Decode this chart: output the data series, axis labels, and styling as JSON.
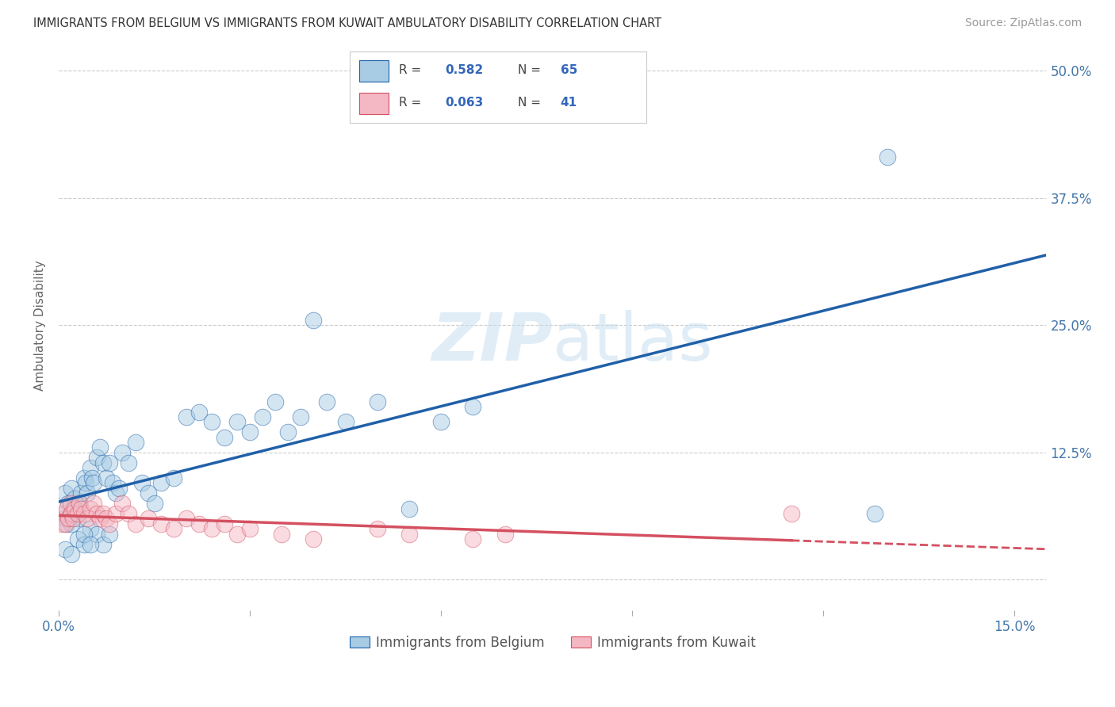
{
  "title": "IMMIGRANTS FROM BELGIUM VS IMMIGRANTS FROM KUWAIT AMBULATORY DISABILITY CORRELATION CHART",
  "source": "Source: ZipAtlas.com",
  "xlabel_belgium": "Immigrants from Belgium",
  "xlabel_kuwait": "Immigrants from Kuwait",
  "ylabel": "Ambulatory Disability",
  "xlim": [
    0.0,
    0.155
  ],
  "ylim": [
    -0.03,
    0.53
  ],
  "xticks": [
    0.0,
    0.03,
    0.06,
    0.09,
    0.12,
    0.15
  ],
  "yticks": [
    0.0,
    0.125,
    0.25,
    0.375,
    0.5
  ],
  "ytick_labels": [
    "",
    "12.5%",
    "25.0%",
    "37.5%",
    "50.0%"
  ],
  "legend_R_belgium": "0.582",
  "legend_N_belgium": "65",
  "legend_R_kuwait": "0.063",
  "legend_N_kuwait": "41",
  "color_belgium": "#a8cce4",
  "color_kuwait": "#f4b8c4",
  "color_trendline_belgium": "#2060a8",
  "color_trendline_kuwait": "#d45060",
  "background_color": "#ffffff",
  "belgium_x": [
    0.0008,
    0.001,
    0.0012,
    0.0015,
    0.0018,
    0.002,
    0.0022,
    0.0025,
    0.003,
    0.0032,
    0.0035,
    0.004,
    0.0042,
    0.0045,
    0.005,
    0.0052,
    0.0055,
    0.006,
    0.0065,
    0.007,
    0.0075,
    0.008,
    0.0085,
    0.009,
    0.0095,
    0.01,
    0.011,
    0.012,
    0.013,
    0.014,
    0.015,
    0.016,
    0.018,
    0.02,
    0.022,
    0.024,
    0.026,
    0.028,
    0.03,
    0.032,
    0.034,
    0.036,
    0.038,
    0.04,
    0.042,
    0.045,
    0.05,
    0.055,
    0.06,
    0.065,
    0.001,
    0.002,
    0.003,
    0.004,
    0.005,
    0.006,
    0.007,
    0.008,
    0.0015,
    0.002,
    0.003,
    0.004,
    0.005,
    0.13,
    0.128
  ],
  "belgium_y": [
    0.06,
    0.085,
    0.055,
    0.075,
    0.065,
    0.09,
    0.07,
    0.08,
    0.06,
    0.075,
    0.085,
    0.1,
    0.095,
    0.085,
    0.11,
    0.1,
    0.095,
    0.12,
    0.13,
    0.115,
    0.1,
    0.115,
    0.095,
    0.085,
    0.09,
    0.125,
    0.115,
    0.135,
    0.095,
    0.085,
    0.075,
    0.095,
    0.1,
    0.16,
    0.165,
    0.155,
    0.14,
    0.155,
    0.145,
    0.16,
    0.175,
    0.145,
    0.16,
    0.255,
    0.175,
    0.155,
    0.175,
    0.07,
    0.155,
    0.17,
    0.03,
    0.025,
    0.04,
    0.035,
    0.05,
    0.045,
    0.035,
    0.045,
    0.06,
    0.055,
    0.065,
    0.045,
    0.035,
    0.415,
    0.065
  ],
  "kuwait_x": [
    0.0005,
    0.0008,
    0.001,
    0.0012,
    0.0015,
    0.0018,
    0.002,
    0.0022,
    0.0025,
    0.003,
    0.0032,
    0.0035,
    0.004,
    0.0045,
    0.005,
    0.0055,
    0.006,
    0.0065,
    0.007,
    0.0075,
    0.008,
    0.009,
    0.01,
    0.011,
    0.012,
    0.014,
    0.016,
    0.018,
    0.02,
    0.022,
    0.024,
    0.026,
    0.028,
    0.03,
    0.035,
    0.04,
    0.05,
    0.055,
    0.065,
    0.07,
    0.115
  ],
  "kuwait_y": [
    0.055,
    0.065,
    0.055,
    0.07,
    0.06,
    0.075,
    0.065,
    0.06,
    0.07,
    0.065,
    0.075,
    0.07,
    0.065,
    0.06,
    0.07,
    0.075,
    0.065,
    0.06,
    0.065,
    0.06,
    0.055,
    0.065,
    0.075,
    0.065,
    0.055,
    0.06,
    0.055,
    0.05,
    0.06,
    0.055,
    0.05,
    0.055,
    0.045,
    0.05,
    0.045,
    0.04,
    0.05,
    0.045,
    0.04,
    0.045,
    0.065
  ]
}
